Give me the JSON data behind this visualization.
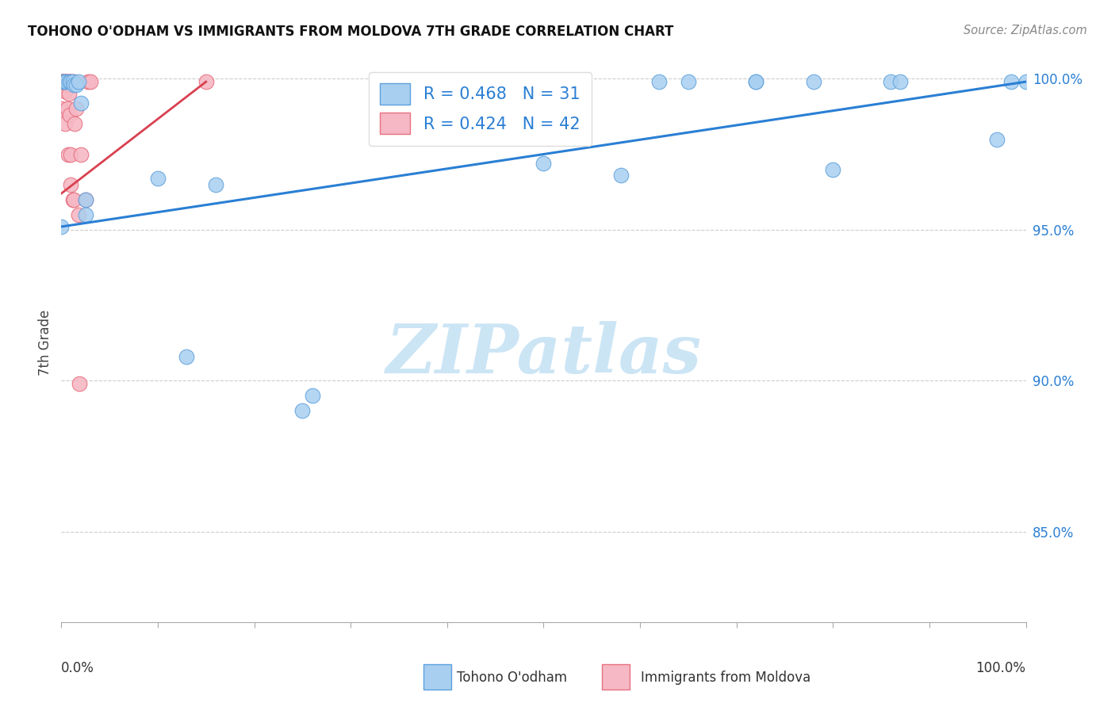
{
  "title": "TOHONO O'ODHAM VS IMMIGRANTS FROM MOLDOVA 7TH GRADE CORRELATION CHART",
  "source": "Source: ZipAtlas.com",
  "ylabel": "7th Grade",
  "xlim": [
    0.0,
    1.0
  ],
  "ylim": [
    0.82,
    1.005
  ],
  "yticks": [
    0.85,
    0.9,
    0.95,
    1.0
  ],
  "ytick_labels": [
    "85.0%",
    "90.0%",
    "95.0%",
    "100.0%"
  ],
  "legend_r_blue": "R = 0.468",
  "legend_n_blue": "N = 31",
  "legend_r_pink": "R = 0.424",
  "legend_n_pink": "N = 42",
  "blue_fill": "#a8cff0",
  "pink_fill": "#f5b8c4",
  "blue_edge": "#5da0dc",
  "pink_edge": "#e87080",
  "blue_line_color": "#2a7fd4",
  "pink_line_color": "#d94050",
  "text_color_blue": "#2a7fd4",
  "watermark_color": "#cce5f5",
  "grid_color": "#cccccc",
  "blue_scatter_x": [
    0.0,
    0.002,
    0.003,
    0.005,
    0.008,
    0.01,
    0.012,
    0.013,
    0.015,
    0.018,
    0.02,
    0.025,
    0.025,
    0.1,
    0.13,
    0.16,
    0.25,
    0.26,
    0.5,
    0.58,
    0.62,
    0.65,
    0.72,
    0.72,
    0.78,
    0.8,
    0.86,
    0.87,
    0.97,
    0.985,
    1.0
  ],
  "blue_scatter_y": [
    0.951,
    0.999,
    0.999,
    0.999,
    0.999,
    0.999,
    0.999,
    0.998,
    0.998,
    0.999,
    0.992,
    0.96,
    0.955,
    0.967,
    0.908,
    0.965,
    0.89,
    0.895,
    0.972,
    0.968,
    0.999,
    0.999,
    0.999,
    0.999,
    0.999,
    0.97,
    0.999,
    0.999,
    0.98,
    0.999,
    0.999
  ],
  "pink_scatter_x": [
    0.0,
    0.0,
    0.0,
    0.0,
    0.0,
    0.0,
    0.0,
    0.002,
    0.002,
    0.003,
    0.003,
    0.004,
    0.004,
    0.004,
    0.005,
    0.005,
    0.005,
    0.006,
    0.006,
    0.007,
    0.007,
    0.007,
    0.008,
    0.008,
    0.009,
    0.009,
    0.01,
    0.01,
    0.01,
    0.011,
    0.012,
    0.013,
    0.013,
    0.014,
    0.015,
    0.018,
    0.019,
    0.02,
    0.025,
    0.028,
    0.03,
    0.15
  ],
  "pink_scatter_y": [
    0.999,
    0.999,
    0.999,
    0.999,
    0.999,
    0.998,
    0.99,
    0.999,
    0.999,
    0.999,
    0.999,
    0.999,
    0.996,
    0.985,
    0.999,
    0.999,
    0.999,
    0.999,
    0.99,
    0.999,
    0.998,
    0.975,
    0.999,
    0.995,
    0.999,
    0.988,
    0.999,
    0.975,
    0.965,
    0.999,
    0.96,
    0.999,
    0.96,
    0.985,
    0.99,
    0.955,
    0.899,
    0.975,
    0.96,
    0.999,
    0.999,
    0.999
  ],
  "blue_line_x": [
    0.0,
    1.0
  ],
  "blue_line_y": [
    0.951,
    0.999
  ],
  "pink_line_x": [
    0.0,
    0.15
  ],
  "pink_line_y": [
    0.962,
    0.999
  ],
  "xtick_positions": [
    0.0,
    0.1,
    0.2,
    0.3,
    0.4,
    0.5,
    0.6,
    0.7,
    0.8,
    0.9,
    1.0
  ]
}
